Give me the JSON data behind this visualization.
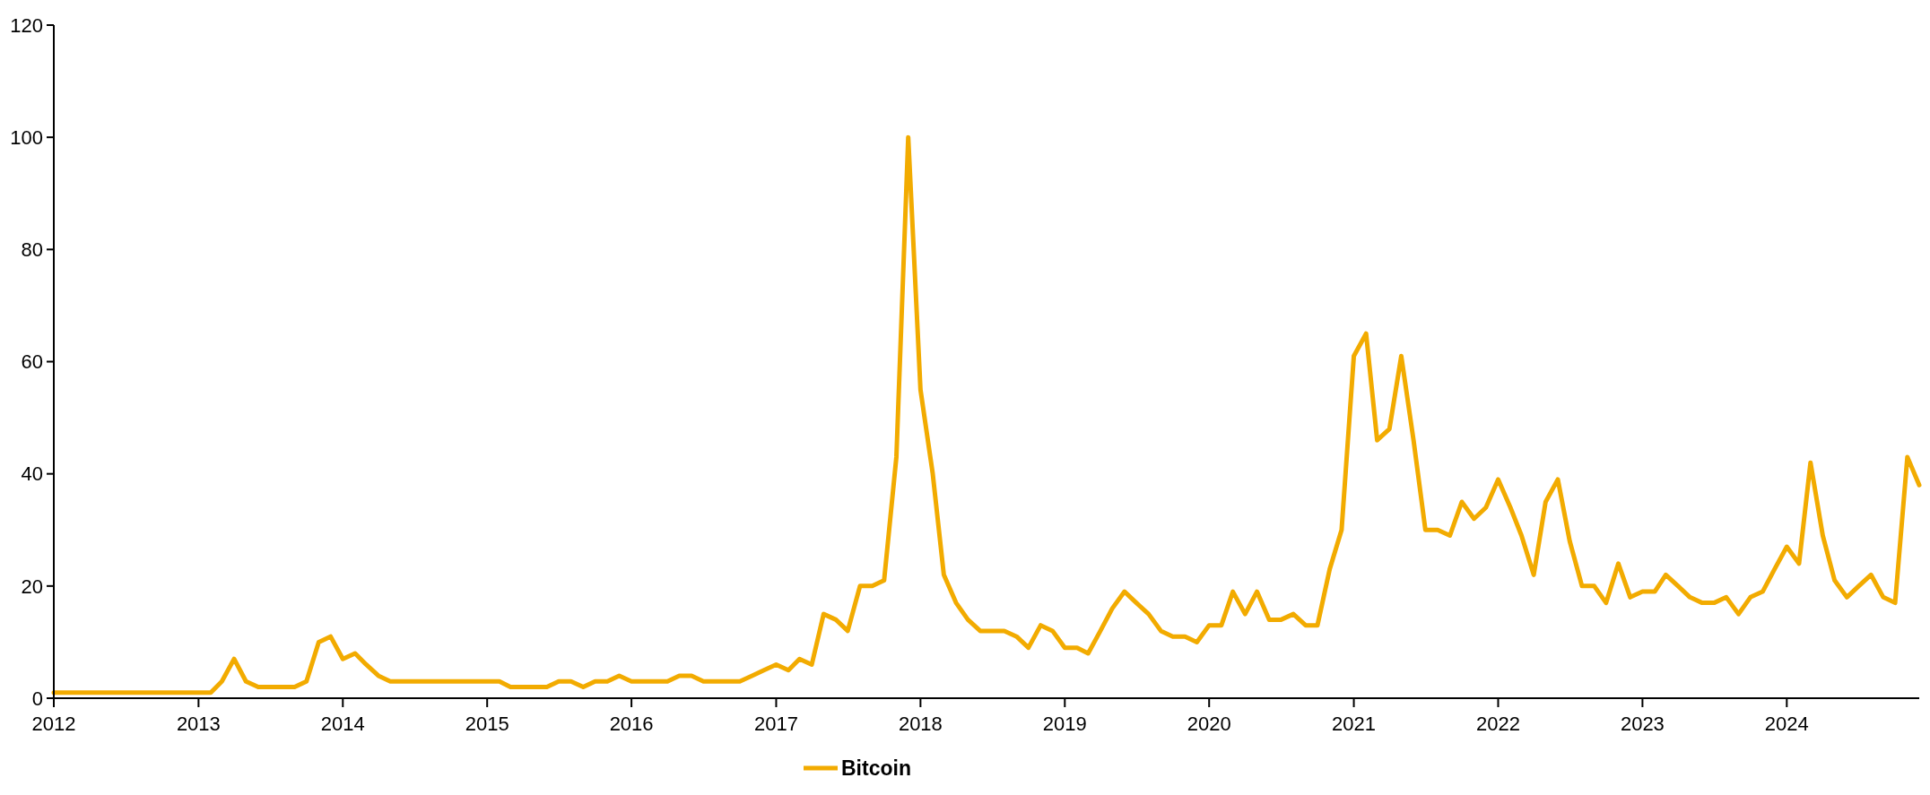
{
  "chart_data": {
    "type": "line",
    "x": [
      "2012-01",
      "2012-02",
      "2012-03",
      "2012-04",
      "2012-05",
      "2012-06",
      "2012-07",
      "2012-08",
      "2012-09",
      "2012-10",
      "2012-11",
      "2012-12",
      "2013-01",
      "2013-02",
      "2013-03",
      "2013-04",
      "2013-05",
      "2013-06",
      "2013-07",
      "2013-08",
      "2013-09",
      "2013-10",
      "2013-11",
      "2013-12",
      "2014-01",
      "2014-02",
      "2014-03",
      "2014-04",
      "2014-05",
      "2014-06",
      "2014-07",
      "2014-08",
      "2014-09",
      "2014-10",
      "2014-11",
      "2014-12",
      "2015-01",
      "2015-02",
      "2015-03",
      "2015-04",
      "2015-05",
      "2015-06",
      "2015-07",
      "2015-08",
      "2015-09",
      "2015-10",
      "2015-11",
      "2015-12",
      "2016-01",
      "2016-02",
      "2016-03",
      "2016-04",
      "2016-05",
      "2016-06",
      "2016-07",
      "2016-08",
      "2016-09",
      "2016-10",
      "2016-11",
      "2016-12",
      "2017-01",
      "2017-02",
      "2017-03",
      "2017-04",
      "2017-05",
      "2017-06",
      "2017-07",
      "2017-08",
      "2017-09",
      "2017-10",
      "2017-11",
      "2017-12",
      "2018-01",
      "2018-02",
      "2018-03",
      "2018-04",
      "2018-05",
      "2018-06",
      "2018-07",
      "2018-08",
      "2018-09",
      "2018-10",
      "2018-11",
      "2018-12",
      "2019-01",
      "2019-02",
      "2019-03",
      "2019-04",
      "2019-05",
      "2019-06",
      "2019-07",
      "2019-08",
      "2019-09",
      "2019-10",
      "2019-11",
      "2019-12",
      "2020-01",
      "2020-02",
      "2020-03",
      "2020-04",
      "2020-05",
      "2020-06",
      "2020-07",
      "2020-08",
      "2020-09",
      "2020-10",
      "2020-11",
      "2020-12",
      "2021-01",
      "2021-02",
      "2021-03",
      "2021-04",
      "2021-05",
      "2021-06",
      "2021-07",
      "2021-08",
      "2021-09",
      "2021-10",
      "2021-11",
      "2021-12",
      "2022-01",
      "2022-02",
      "2022-03",
      "2022-04",
      "2022-05",
      "2022-06",
      "2022-07",
      "2022-08",
      "2022-09",
      "2022-10",
      "2022-11",
      "2022-12",
      "2023-01",
      "2023-02",
      "2023-03",
      "2023-04",
      "2023-05",
      "2023-06",
      "2023-07",
      "2023-08",
      "2023-09",
      "2023-10",
      "2023-11",
      "2023-12",
      "2024-01",
      "2024-02",
      "2024-03",
      "2024-04",
      "2024-05",
      "2024-06",
      "2024-07",
      "2024-08",
      "2024-09",
      "2024-10",
      "2024-11",
      "2024-12"
    ],
    "series": [
      {
        "name": "Bitcoin",
        "color": "#f2ab00",
        "values": [
          1,
          1,
          1,
          1,
          1,
          1,
          1,
          1,
          1,
          1,
          1,
          1,
          1,
          1,
          3,
          7,
          3,
          2,
          2,
          2,
          2,
          3,
          10,
          11,
          7,
          8,
          6,
          4,
          3,
          3,
          3,
          3,
          3,
          3,
          3,
          3,
          3,
          3,
          2,
          2,
          2,
          2,
          3,
          3,
          2,
          3,
          3,
          4,
          3,
          3,
          3,
          3,
          4,
          4,
          3,
          3,
          3,
          3,
          4,
          5,
          6,
          5,
          7,
          6,
          15,
          14,
          12,
          20,
          20,
          21,
          43,
          100,
          55,
          40,
          22,
          17,
          14,
          12,
          12,
          12,
          11,
          9,
          13,
          12,
          9,
          9,
          8,
          12,
          16,
          19,
          17,
          15,
          12,
          11,
          11,
          10,
          13,
          13,
          19,
          15,
          19,
          14,
          14,
          15,
          13,
          13,
          23,
          30,
          61,
          65,
          46,
          48,
          61,
          46,
          30,
          30,
          29,
          35,
          32,
          34,
          39,
          34,
          29,
          22,
          35,
          39,
          28,
          20,
          20,
          17,
          24,
          18,
          19,
          19,
          22,
          20,
          18,
          17,
          17,
          18,
          15,
          18,
          19,
          23,
          27,
          24,
          42,
          29,
          21,
          18,
          20,
          22,
          18,
          17,
          43,
          38
        ]
      }
    ],
    "xlim": [
      "2012-01",
      "2024-12"
    ],
    "xticks": [
      {
        "value": "2012",
        "label": "2012"
      },
      {
        "value": "2013",
        "label": "2013"
      },
      {
        "value": "2014",
        "label": "2014"
      },
      {
        "value": "2015",
        "label": "2015"
      },
      {
        "value": "2016",
        "label": "2016"
      },
      {
        "value": "2017",
        "label": "2017"
      },
      {
        "value": "2018",
        "label": "2018"
      },
      {
        "value": "2019",
        "label": "2019"
      },
      {
        "value": "2020",
        "label": "2020"
      },
      {
        "value": "2021",
        "label": "2021"
      },
      {
        "value": "2022",
        "label": "2022"
      },
      {
        "value": "2023",
        "label": "2023"
      },
      {
        "value": "2024",
        "label": "2024"
      }
    ],
    "ylim": [
      0,
      120
    ],
    "yticks": [
      0,
      20,
      40,
      60,
      80,
      100,
      120
    ],
    "grid": false,
    "legend": "bottom",
    "marker": "none",
    "line_style": "solid"
  }
}
